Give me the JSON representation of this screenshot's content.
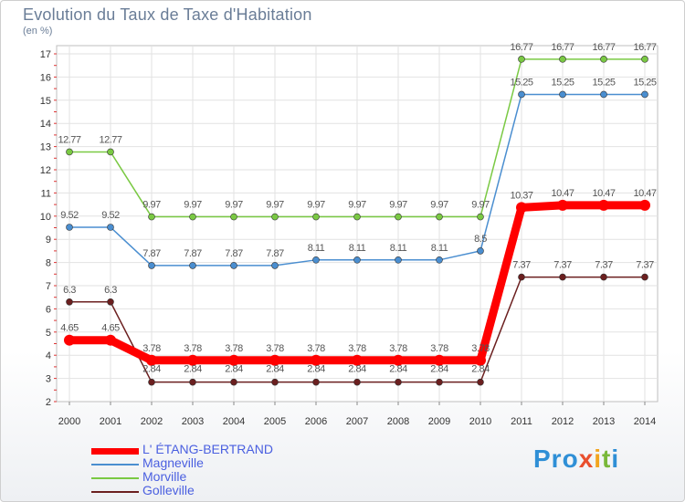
{
  "chart_data": {
    "type": "line",
    "title": "Evolution du Taux de Taxe d'Habitation",
    "subtitle": "(en %)",
    "x": [
      "2000",
      "2001",
      "2002",
      "2003",
      "2004",
      "2005",
      "2006",
      "2007",
      "2008",
      "2009",
      "2010",
      "2011",
      "2012",
      "2013",
      "2014"
    ],
    "ylim": [
      2,
      17
    ],
    "yticks": [
      "2",
      "3",
      "4",
      "5",
      "6",
      "7",
      "8",
      "9",
      "10",
      "11",
      "12",
      "13",
      "14",
      "15",
      "16",
      "17"
    ],
    "grid": true,
    "legend_position": "bottom-left",
    "series": [
      {
        "name": "L' ÉTANG-BERTRAND",
        "color": "#ff0000",
        "values": [
          4.65,
          4.65,
          3.78,
          3.78,
          3.78,
          3.78,
          3.78,
          3.78,
          3.78,
          3.78,
          3.78,
          10.37,
          10.47,
          10.47,
          10.47
        ],
        "labels": [
          "4.65",
          "4.65",
          "3.78",
          "3.78",
          "3.78",
          "3.78",
          "3.78",
          "3.78",
          "3.78",
          "3.78",
          "3.78",
          "10.37",
          "10.47",
          "10.47",
          "10.47"
        ]
      },
      {
        "name": "Magneville",
        "color": "#4a8ed0",
        "values": [
          9.52,
          9.52,
          7.87,
          7.87,
          7.87,
          7.87,
          8.11,
          8.11,
          8.11,
          8.11,
          8.5,
          15.25,
          15.25,
          15.25,
          15.25
        ],
        "labels": [
          "9.52",
          "9.52",
          "7.87",
          "7.87",
          "7.87",
          "7.87",
          "8.11",
          "8.11",
          "8.11",
          "8.11",
          "8.5",
          "15.25",
          "15.25",
          "15.25",
          "15.25"
        ]
      },
      {
        "name": "Morville",
        "color": "#7ac943",
        "values": [
          12.77,
          12.77,
          9.97,
          9.97,
          9.97,
          9.97,
          9.97,
          9.97,
          9.97,
          9.97,
          9.97,
          16.77,
          16.77,
          16.77,
          16.77
        ],
        "labels": [
          "12.77",
          "12.77",
          "9.97",
          "9.97",
          "9.97",
          "9.97",
          "9.97",
          "9.97",
          "9.97",
          "9.97",
          "9.97",
          "16.77",
          "16.77",
          "16.77",
          "16.77"
        ]
      },
      {
        "name": "Golleville",
        "color": "#6b1f1f",
        "values": [
          6.3,
          6.3,
          2.84,
          2.84,
          2.84,
          2.84,
          2.84,
          2.84,
          2.84,
          2.84,
          2.84,
          7.37,
          7.37,
          7.37,
          7.37
        ],
        "labels": [
          "6.3",
          "6.3",
          "2.84",
          "2.84",
          "2.84",
          "2.84",
          "2.84",
          "2.84",
          "2.84",
          "2.84",
          "2.84",
          "7.37",
          "7.37",
          "7.37",
          "7.37"
        ]
      }
    ]
  },
  "brand": {
    "p1": "Pro",
    "p2": "x",
    "p3": "i",
    "p4": "t",
    "p5": "i"
  }
}
